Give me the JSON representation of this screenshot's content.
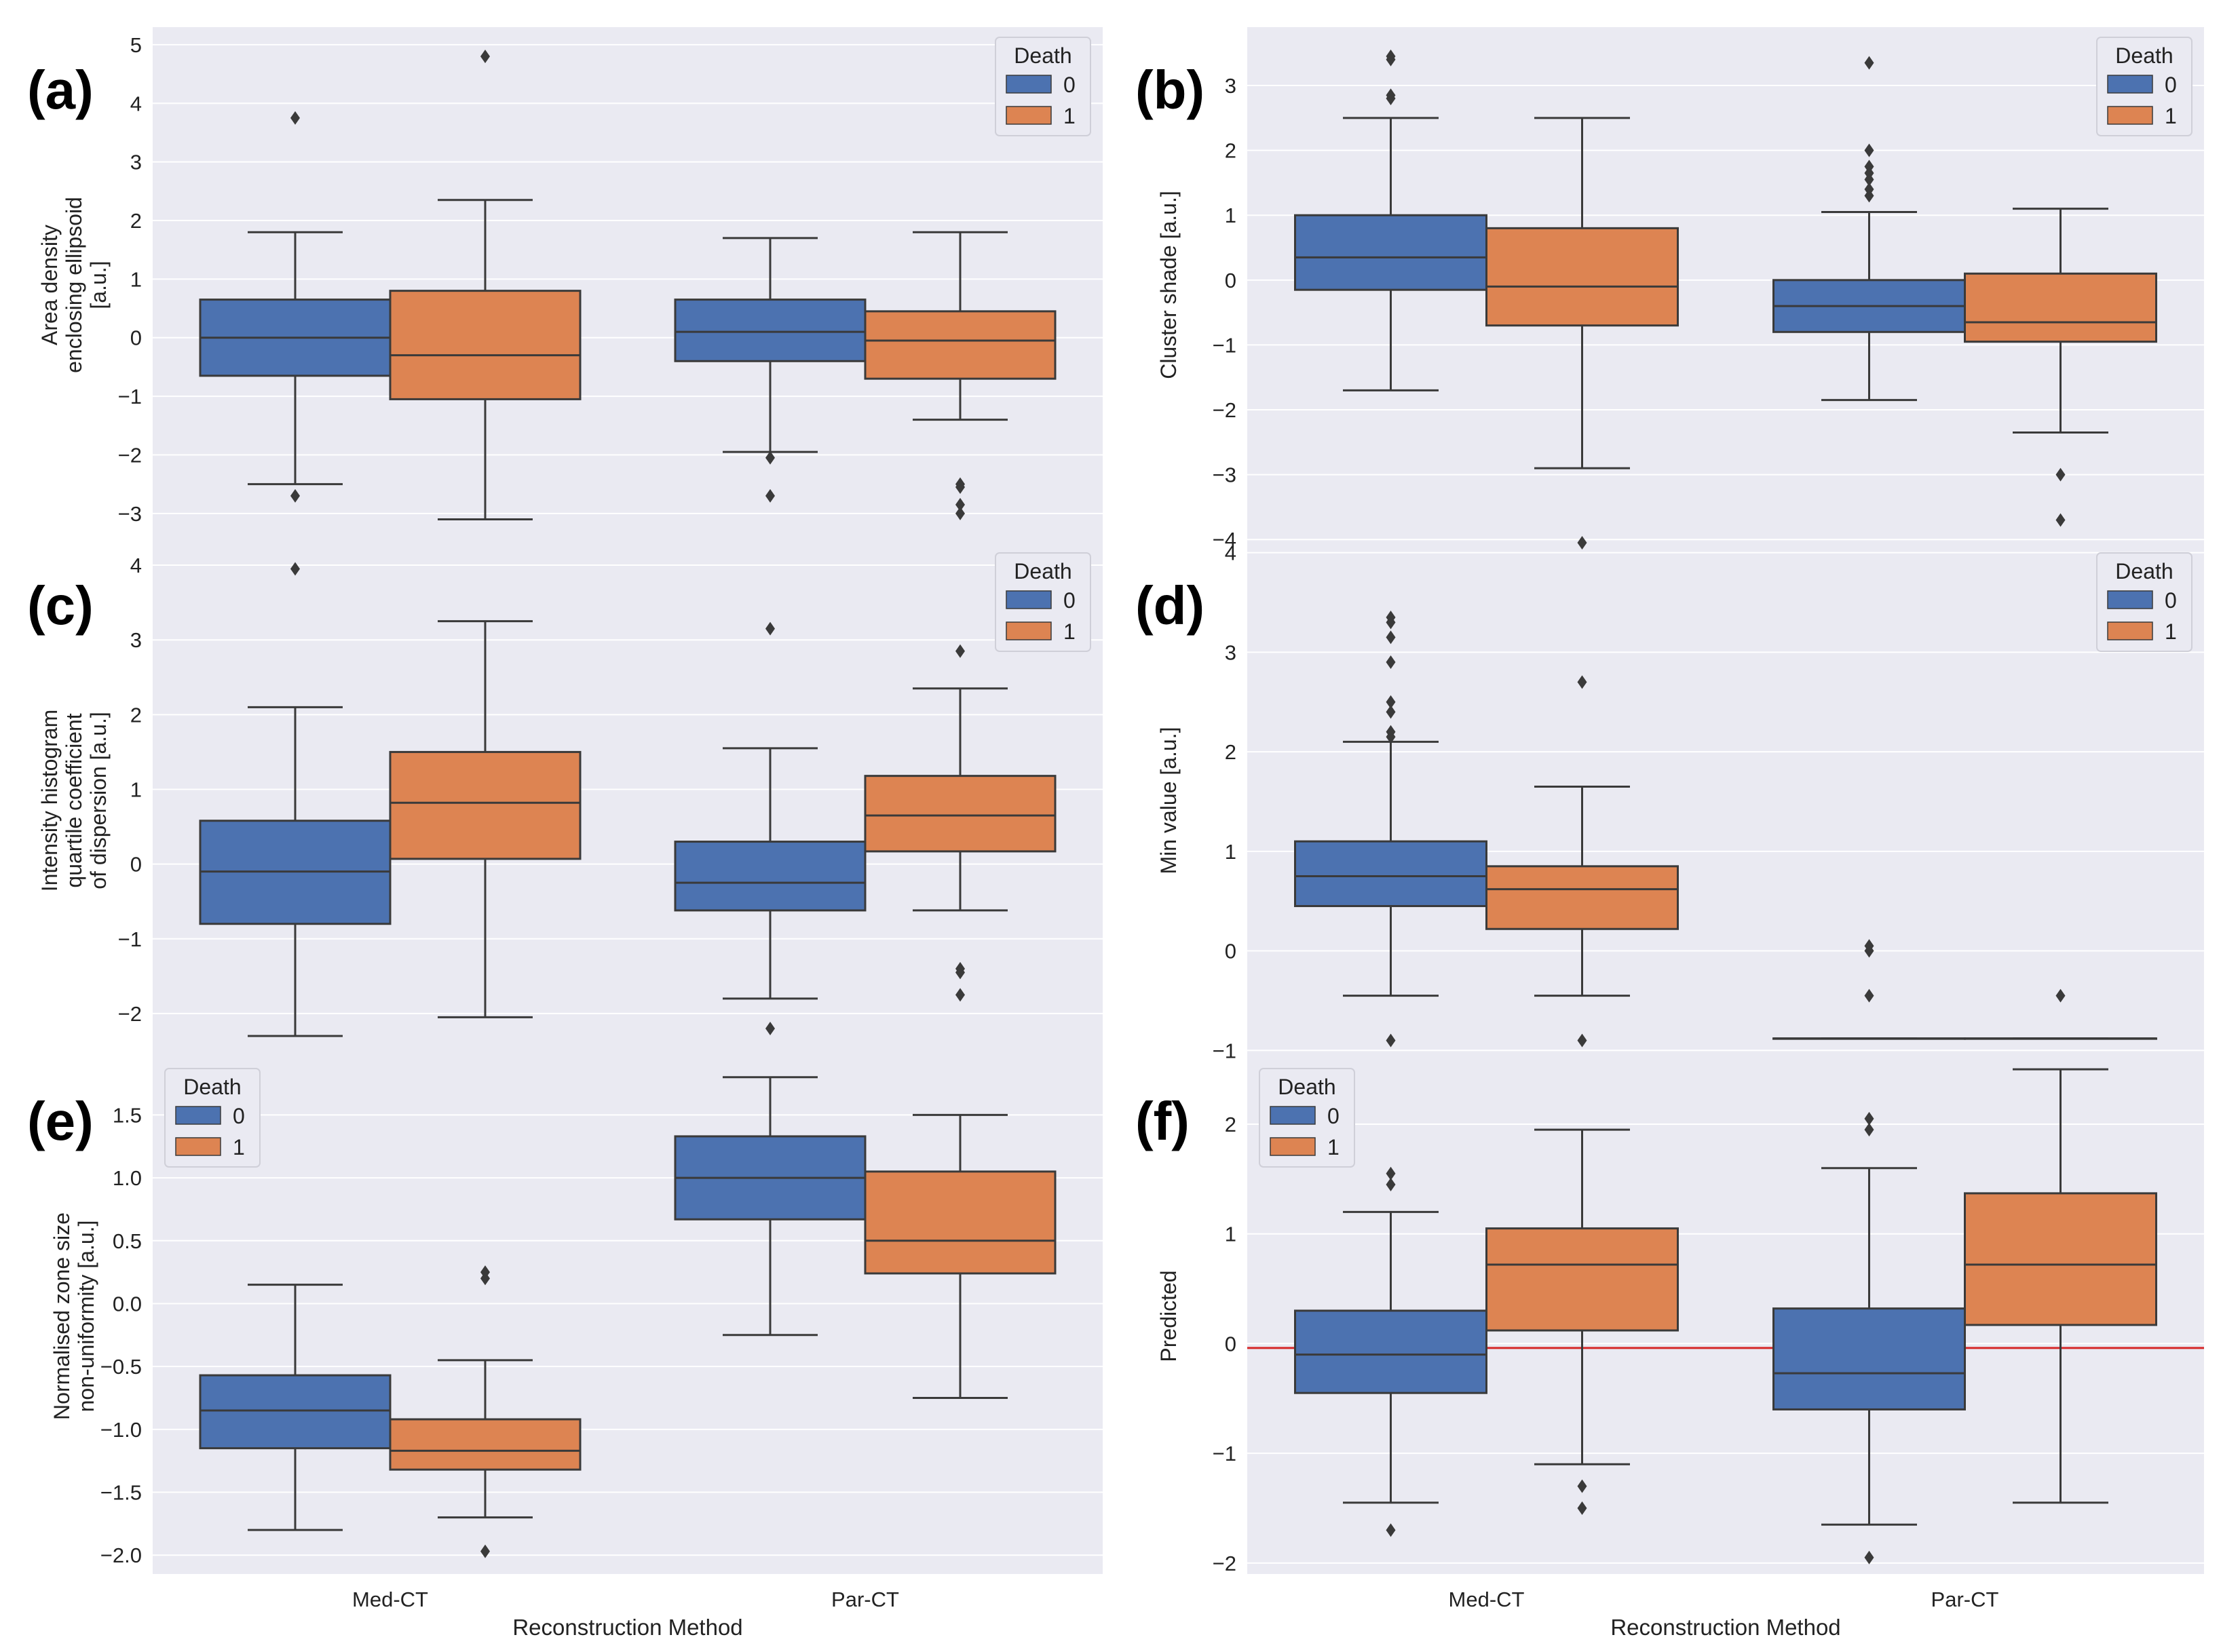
{
  "colors": {
    "group0": "#4c72b0",
    "group1": "#dd8452",
    "axes_bg": "#eaeaf2",
    "grid": "#ffffff",
    "line": "#3a3a3a",
    "ref_line": "#d62728"
  },
  "shared_x": {
    "categories": [
      "Med-CT",
      "Par-CT"
    ],
    "xlabel": "Reconstruction Method"
  },
  "chart_data": [
    {
      "id": "a",
      "panel_label": "(a)",
      "type": "box",
      "ylabel": [
        "Area density",
        "enclosing ellipsoid",
        "[a.u.]"
      ],
      "ylim": [
        -3.5,
        5.3
      ],
      "yticks": [
        {
          "v": -3,
          "t": "−3"
        },
        {
          "v": -2,
          "t": "−2"
        },
        {
          "v": -1,
          "t": "−1"
        },
        {
          "v": 0,
          "t": "0"
        },
        {
          "v": 1,
          "t": "1"
        },
        {
          "v": 2,
          "t": "2"
        },
        {
          "v": 3,
          "t": "3"
        },
        {
          "v": 4,
          "t": "4"
        },
        {
          "v": 5,
          "t": "5"
        }
      ],
      "legend": {
        "title": "Death",
        "entries": [
          "0",
          "1"
        ],
        "position": "upper right"
      },
      "categories": [
        "Med-CT",
        "Par-CT"
      ],
      "groups": [
        {
          "category": "Med-CT",
          "hue": "0",
          "wlo": -2.5,
          "q1": -0.65,
          "med": 0.0,
          "q3": 0.65,
          "whi": 1.8,
          "outliers": [
            -2.7,
            3.75
          ]
        },
        {
          "category": "Med-CT",
          "hue": "1",
          "wlo": -3.1,
          "q1": -1.05,
          "med": -0.3,
          "q3": 0.8,
          "whi": 2.35,
          "outliers": [
            4.8
          ]
        },
        {
          "category": "Par-CT",
          "hue": "0",
          "wlo": -1.95,
          "q1": -0.4,
          "med": 0.1,
          "q3": 0.65,
          "whi": 1.7,
          "outliers": [
            -2.05,
            -2.7
          ]
        },
        {
          "category": "Par-CT",
          "hue": "1",
          "wlo": -1.4,
          "q1": -0.7,
          "med": -0.05,
          "q3": 0.45,
          "whi": 1.8,
          "outliers": [
            -2.5,
            -2.55,
            -2.85,
            -3.0
          ]
        }
      ]
    },
    {
      "id": "b",
      "panel_label": "(b)",
      "type": "box",
      "ylabel": [
        "Cluster shade [a.u.]"
      ],
      "ylim": [
        -4.05,
        3.9
      ],
      "yticks": [
        {
          "v": -4,
          "t": "−4"
        },
        {
          "v": -3,
          "t": "−3"
        },
        {
          "v": -2,
          "t": "−2"
        },
        {
          "v": -1,
          "t": "−1"
        },
        {
          "v": 0,
          "t": "0"
        },
        {
          "v": 1,
          "t": "1"
        },
        {
          "v": 2,
          "t": "2"
        },
        {
          "v": 3,
          "t": "3"
        }
      ],
      "legend": {
        "title": "Death",
        "entries": [
          "0",
          "1"
        ],
        "position": "upper right"
      },
      "categories": [
        "Med-CT",
        "Par-CT"
      ],
      "groups": [
        {
          "category": "Med-CT",
          "hue": "0",
          "wlo": -1.7,
          "q1": -0.15,
          "med": 0.35,
          "q3": 1.0,
          "whi": 2.5,
          "outliers": [
            2.8,
            2.85,
            3.4,
            3.45
          ]
        },
        {
          "category": "Med-CT",
          "hue": "1",
          "wlo": -2.9,
          "q1": -0.7,
          "med": -0.1,
          "q3": 0.8,
          "whi": 2.5,
          "outliers": []
        },
        {
          "category": "Par-CT",
          "hue": "0",
          "wlo": -1.85,
          "q1": -0.8,
          "med": -0.4,
          "q3": 0.0,
          "whi": 1.05,
          "outliers": [
            1.3,
            1.4,
            1.55,
            1.65,
            1.75,
            2.0,
            3.35
          ]
        },
        {
          "category": "Par-CT",
          "hue": "1",
          "wlo": -2.35,
          "q1": -0.95,
          "med": -0.65,
          "q3": 0.1,
          "whi": 1.1,
          "outliers": [
            -3.0,
            -3.7
          ]
        }
      ]
    },
    {
      "id": "c",
      "panel_label": "(c)",
      "type": "box",
      "ylabel": [
        "Intensity histogram",
        "quartile coefficient",
        "of dispersion [a.u.]"
      ],
      "ylim": [
        -2.6,
        4.3
      ],
      "yticks": [
        {
          "v": -2,
          "t": "−2"
        },
        {
          "v": -1,
          "t": "−1"
        },
        {
          "v": 0,
          "t": "0"
        },
        {
          "v": 1,
          "t": "1"
        },
        {
          "v": 2,
          "t": "2"
        },
        {
          "v": 3,
          "t": "3"
        },
        {
          "v": 4,
          "t": "4"
        }
      ],
      "legend": {
        "title": "Death",
        "entries": [
          "0",
          "1"
        ],
        "position": "upper right"
      },
      "categories": [
        "Med-CT",
        "Par-CT"
      ],
      "groups": [
        {
          "category": "Med-CT",
          "hue": "0",
          "wlo": -2.3,
          "q1": -0.8,
          "med": -0.1,
          "q3": 0.58,
          "whi": 2.1,
          "outliers": [
            3.95
          ]
        },
        {
          "category": "Med-CT",
          "hue": "1",
          "wlo": -2.05,
          "q1": 0.07,
          "med": 0.82,
          "q3": 1.5,
          "whi": 3.25,
          "outliers": []
        },
        {
          "category": "Par-CT",
          "hue": "0",
          "wlo": -1.8,
          "q1": -0.62,
          "med": -0.25,
          "q3": 0.3,
          "whi": 1.55,
          "outliers": [
            -2.2,
            3.15
          ]
        },
        {
          "category": "Par-CT",
          "hue": "1",
          "wlo": -0.62,
          "q1": 0.17,
          "med": 0.65,
          "q3": 1.18,
          "whi": 2.35,
          "outliers": [
            -1.4,
            -1.45,
            -1.75,
            2.85
          ]
        }
      ]
    },
    {
      "id": "d",
      "panel_label": "(d)",
      "type": "box",
      "ylabel": [
        "Min value [a.u.]"
      ],
      "ylim": [
        -1.08,
        4.1
      ],
      "yticks": [
        {
          "v": -1,
          "t": "−1"
        },
        {
          "v": 0,
          "t": "0"
        },
        {
          "v": 1,
          "t": "1"
        },
        {
          "v": 2,
          "t": "2"
        },
        {
          "v": 3,
          "t": "3"
        },
        {
          "v": 4,
          "t": "4"
        }
      ],
      "legend": {
        "title": "Death",
        "entries": [
          "0",
          "1"
        ],
        "position": "upper right"
      },
      "categories": [
        "Med-CT",
        "Par-CT"
      ],
      "groups": [
        {
          "category": "Med-CT",
          "hue": "0",
          "wlo": -0.45,
          "q1": 0.45,
          "med": 0.75,
          "q3": 1.1,
          "whi": 2.1,
          "outliers": [
            -0.9,
            2.15,
            2.2,
            2.4,
            2.5,
            2.9,
            3.15,
            3.3,
            3.35
          ]
        },
        {
          "category": "Med-CT",
          "hue": "1",
          "wlo": -0.45,
          "q1": 0.22,
          "med": 0.62,
          "q3": 0.85,
          "whi": 1.65,
          "outliers": [
            -0.9,
            2.7,
            4.1
          ]
        },
        {
          "category": "Par-CT",
          "hue": "0",
          "wlo": -0.88,
          "q1": -0.88,
          "med": -0.88,
          "q3": -0.88,
          "whi": -0.88,
          "outliers": [
            -0.45,
            0.0,
            0.05
          ]
        },
        {
          "category": "Par-CT",
          "hue": "1",
          "wlo": -0.88,
          "q1": -0.88,
          "med": -0.88,
          "q3": -0.88,
          "whi": -0.88,
          "outliers": [
            -0.45
          ]
        }
      ]
    },
    {
      "id": "e",
      "panel_label": "(e)",
      "type": "box",
      "ylabel": [
        "Normalised zone size",
        "non-uniformity [a.u.]"
      ],
      "ylim": [
        -2.15,
        1.95
      ],
      "yticks": [
        {
          "v": -2,
          "t": "−2.0"
        },
        {
          "v": -1.5,
          "t": "−1.5"
        },
        {
          "v": -1,
          "t": "−1.0"
        },
        {
          "v": -0.5,
          "t": "−0.5"
        },
        {
          "v": 0,
          "t": "0.0"
        },
        {
          "v": 0.5,
          "t": "0.5"
        },
        {
          "v": 1,
          "t": "1.0"
        },
        {
          "v": 1.5,
          "t": "1.5"
        }
      ],
      "legend": {
        "title": "Death",
        "entries": [
          "0",
          "1"
        ],
        "position": "upper left"
      },
      "categories": [
        "Med-CT",
        "Par-CT"
      ],
      "groups": [
        {
          "category": "Med-CT",
          "hue": "0",
          "wlo": -1.8,
          "q1": -1.15,
          "med": -0.85,
          "q3": -0.57,
          "whi": 0.15,
          "outliers": []
        },
        {
          "category": "Med-CT",
          "hue": "1",
          "wlo": -1.7,
          "q1": -1.32,
          "med": -1.17,
          "q3": -0.92,
          "whi": -0.45,
          "outliers": [
            -1.97,
            0.2,
            0.25
          ]
        },
        {
          "category": "Par-CT",
          "hue": "0",
          "wlo": -0.25,
          "q1": 0.67,
          "med": 1.0,
          "q3": 1.33,
          "whi": 1.8,
          "outliers": []
        },
        {
          "category": "Par-CT",
          "hue": "1",
          "wlo": -0.75,
          "q1": 0.24,
          "med": 0.5,
          "q3": 1.05,
          "whi": 1.5,
          "outliers": []
        }
      ]
    },
    {
      "id": "f",
      "panel_label": "(f)",
      "type": "box",
      "ylabel": [
        "Predicted"
      ],
      "ylim": [
        -2.1,
        2.6
      ],
      "yticks": [
        {
          "v": -2,
          "t": "−2"
        },
        {
          "v": -1,
          "t": "−1"
        },
        {
          "v": 0,
          "t": "0"
        },
        {
          "v": 1,
          "t": "1"
        },
        {
          "v": 2,
          "t": "2"
        }
      ],
      "legend": {
        "title": "Death",
        "entries": [
          "0",
          "1"
        ],
        "position": "upper left"
      },
      "categories": [
        "Med-CT",
        "Par-CT"
      ],
      "hline": -0.04,
      "groups": [
        {
          "category": "Med-CT",
          "hue": "0",
          "wlo": -1.45,
          "q1": -0.45,
          "med": -0.1,
          "q3": 0.3,
          "whi": 1.2,
          "outliers": [
            -1.7,
            1.45,
            1.55
          ]
        },
        {
          "category": "Med-CT",
          "hue": "1",
          "wlo": -1.1,
          "q1": 0.12,
          "med": 0.72,
          "q3": 1.05,
          "whi": 1.95,
          "outliers": [
            -1.3,
            -1.5
          ]
        },
        {
          "category": "Par-CT",
          "hue": "0",
          "wlo": -1.65,
          "q1": -0.6,
          "med": -0.27,
          "q3": 0.32,
          "whi": 1.6,
          "outliers": [
            -1.95,
            1.95,
            2.05
          ]
        },
        {
          "category": "Par-CT",
          "hue": "1",
          "wlo": -1.45,
          "q1": 0.17,
          "med": 0.72,
          "q3": 1.37,
          "whi": 2.5,
          "outliers": []
        }
      ]
    }
  ]
}
